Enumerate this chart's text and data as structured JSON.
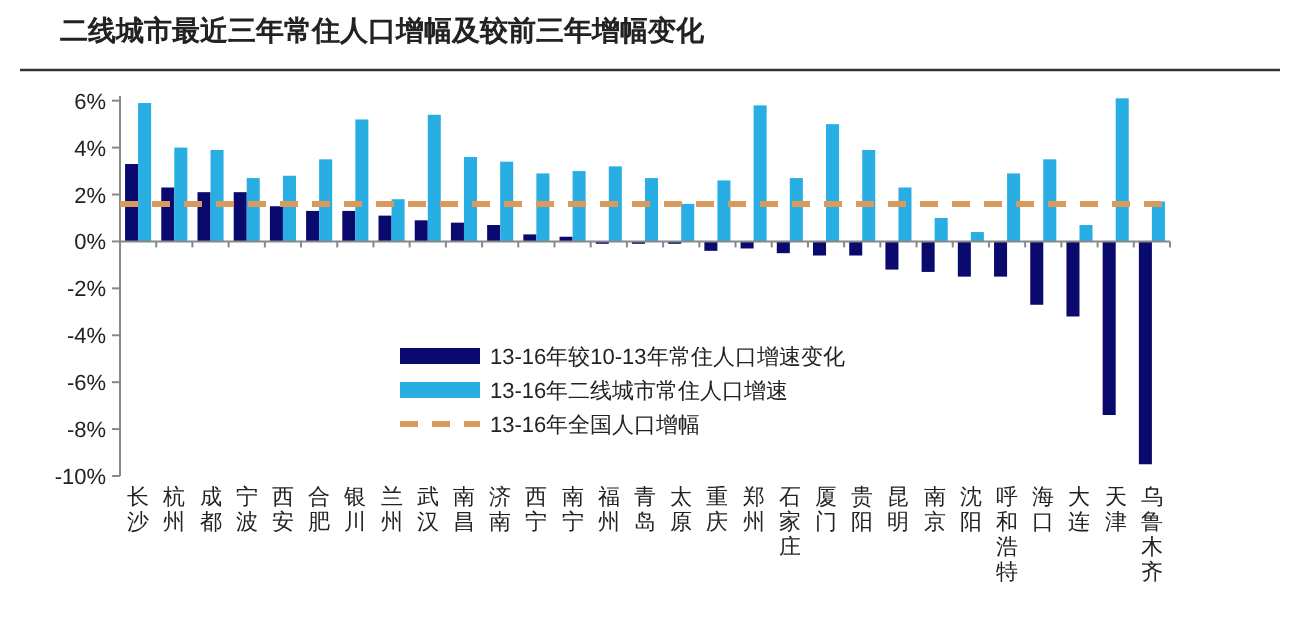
{
  "chart_data": {
    "type": "bar",
    "title": "二线城市最近三年常住人口增幅及较前三年增幅变化",
    "categories": [
      "长沙",
      "杭州",
      "成都",
      "宁波",
      "西安",
      "合肥",
      "银川",
      "兰州",
      "武汉",
      "南昌",
      "济南",
      "西宁",
      "南宁",
      "福州",
      "青岛",
      "太原",
      "重庆",
      "郑州",
      "石家庄",
      "厦门",
      "贵阳",
      "昆明",
      "南京",
      "沈阳",
      "呼和浩特",
      "海口",
      "大连",
      "天津",
      "乌鲁木齐"
    ],
    "series": [
      {
        "name": "13-16年较10-13年常住人口增速变化",
        "color": "#0a0a6e",
        "values": [
          3.3,
          2.3,
          2.1,
          2.1,
          1.5,
          1.3,
          1.3,
          1.1,
          0.9,
          0.8,
          0.7,
          0.3,
          0.2,
          -0.1,
          -0.1,
          -0.1,
          -0.4,
          -0.3,
          -0.5,
          -0.6,
          -0.6,
          -1.2,
          -1.3,
          -1.5,
          -1.5,
          -2.7,
          -3.2,
          -7.4,
          -9.5
        ]
      },
      {
        "name": "13-16年二线城市常住人口增速",
        "color": "#29aee4",
        "values": [
          5.9,
          4.0,
          3.9,
          2.7,
          2.8,
          3.5,
          5.2,
          1.8,
          5.4,
          3.6,
          3.4,
          2.9,
          3.0,
          3.2,
          2.7,
          1.6,
          2.6,
          5.8,
          2.7,
          5.0,
          3.9,
          2.3,
          1.0,
          0.4,
          2.9,
          3.5,
          0.7,
          6.1,
          1.7
        ]
      }
    ],
    "ref_lines": [
      {
        "axis": "y",
        "value": 1.6,
        "label": "13-16年全国人口增幅",
        "color": "#d99a5e",
        "line_style": "dashed"
      }
    ],
    "ylim": [
      -10,
      6.2
    ],
    "yticks": [
      {
        "value": -10,
        "label": "-10%"
      },
      {
        "value": -8,
        "label": "-8%"
      },
      {
        "value": -6,
        "label": "-6%"
      },
      {
        "value": -4,
        "label": "-4%"
      },
      {
        "value": -2,
        "label": "-2%"
      },
      {
        "value": 0,
        "label": "0%"
      },
      {
        "value": 2,
        "label": "2%"
      },
      {
        "value": 4,
        "label": "4%"
      },
      {
        "value": 6,
        "label": "6%"
      }
    ],
    "legend": "bottom"
  }
}
